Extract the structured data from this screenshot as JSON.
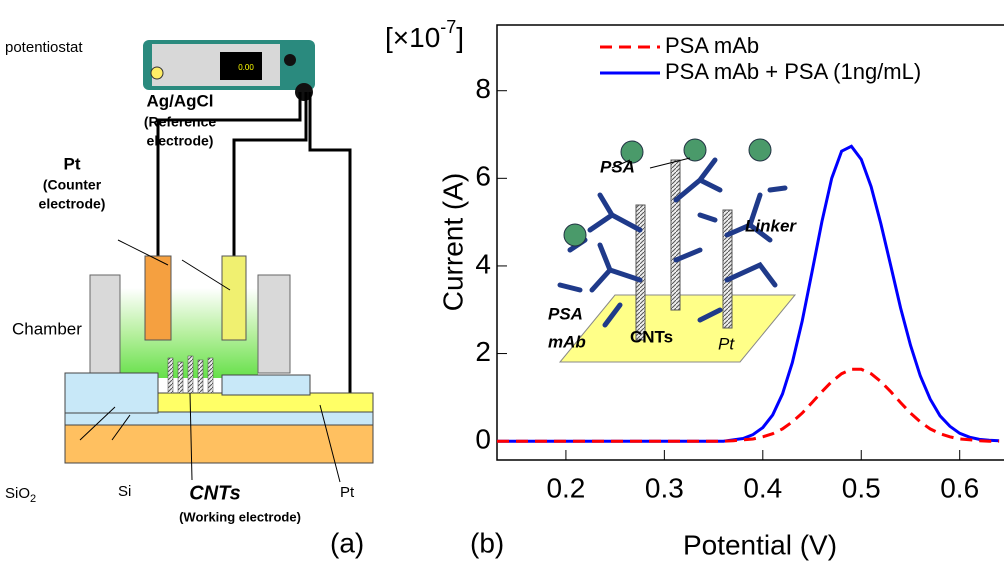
{
  "diagram": {
    "potentiostat": "potentiostat",
    "display": "0.00",
    "reference": [
      "Ag/AgCl",
      "(Reference",
      "electrode)"
    ],
    "counter": [
      "Pt",
      "(Counter",
      "electrode)"
    ],
    "chamber": "Chamber",
    "sio2": {
      "base": "SiO",
      "sub": "2"
    },
    "si": "Si",
    "cnts": "CNTs",
    "working": "(Working electrode)",
    "pt": "Pt",
    "panel": "(a)"
  },
  "chart_data": {
    "type": "line",
    "panel": "(b)",
    "scale_label": {
      "open": "[×10",
      "exponent": "-7",
      "close": "]"
    },
    "xlabel": "Potential (V)",
    "ylabel": "Current (A)",
    "x": [
      0.13,
      0.14,
      0.15,
      0.16,
      0.17,
      0.18,
      0.19,
      0.2,
      0.21,
      0.22,
      0.23,
      0.24,
      0.25,
      0.26,
      0.27,
      0.28,
      0.29,
      0.3,
      0.31,
      0.32,
      0.33,
      0.34,
      0.35,
      0.36,
      0.37,
      0.38,
      0.39,
      0.4,
      0.41,
      0.42,
      0.43,
      0.44,
      0.45,
      0.46,
      0.47,
      0.48,
      0.49,
      0.5,
      0.51,
      0.52,
      0.53,
      0.54,
      0.55,
      0.56,
      0.57,
      0.58,
      0.59,
      0.6,
      0.61,
      0.62,
      0.63,
      0.64
    ],
    "series": [
      {
        "name": "PSA mAb",
        "color": "#ff0000",
        "dashed": true,
        "values": [
          0,
          0,
          0,
          0,
          0,
          0,
          0,
          0,
          0,
          0,
          0,
          0,
          0,
          0,
          0,
          0,
          0,
          0,
          0,
          0,
          0,
          0,
          0,
          0,
          0.01,
          0.03,
          0.05,
          0.1,
          0.17,
          0.28,
          0.44,
          0.64,
          0.88,
          1.13,
          1.36,
          1.54,
          1.64,
          1.64,
          1.54,
          1.36,
          1.13,
          0.88,
          0.64,
          0.44,
          0.28,
          0.17,
          0.1,
          0.05,
          0.03,
          0.01,
          0,
          0
        ]
      },
      {
        "name": "PSA mAb + PSA (1ng/mL)",
        "color": "#0000ff",
        "dashed": false,
        "values": [
          0,
          0,
          0,
          0,
          0,
          0,
          0,
          0,
          0,
          0,
          0,
          0,
          0,
          0,
          0,
          0,
          0,
          0,
          0,
          0,
          0,
          0,
          0,
          0,
          0.03,
          0.06,
          0.15,
          0.31,
          0.6,
          1.08,
          1.79,
          2.74,
          3.86,
          5.01,
          6.0,
          6.62,
          6.73,
          6.43,
          5.81,
          4.96,
          4.0,
          3.04,
          2.19,
          1.49,
          0.96,
          0.58,
          0.34,
          0.18,
          0.09,
          0.04,
          0.02,
          0.01
        ]
      }
    ],
    "xlim": [
      0.13,
      0.645
    ],
    "ylim": [
      -0.43,
      9.5
    ],
    "xticks": [
      0.2,
      0.3,
      0.4,
      0.5,
      0.6
    ],
    "yticks": [
      0,
      2,
      4,
      6,
      8
    ],
    "annotations": {
      "psa": "PSA",
      "linker": "Linker",
      "mab": [
        "PSA",
        "mAb"
      ],
      "cnts": "CNTs",
      "pt": "Pt"
    }
  }
}
